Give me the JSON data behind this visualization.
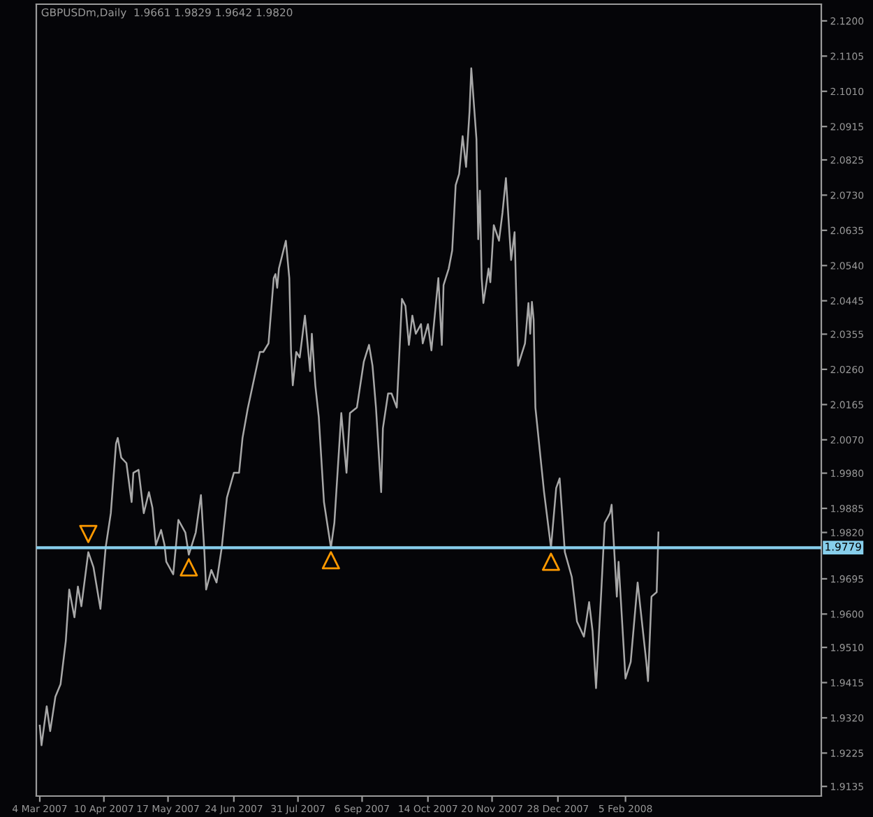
{
  "chart_data": {
    "type": "line",
    "title": "GBPUSDm,Daily  1.9661 1.9829 1.9642 1.9820",
    "xlim": [
      "2007-03-02",
      "2008-05-28"
    ],
    "xticks": [
      {
        "value": "2007-03-04",
        "label": "4 Mar 2007"
      },
      {
        "value": "2007-04-10",
        "label": "10 Apr 2007"
      },
      {
        "value": "2007-05-17",
        "label": "17 May 2007"
      },
      {
        "value": "2007-06-24",
        "label": "24 Jun 2007"
      },
      {
        "value": "2007-07-31",
        "label": "31 Jul 2007"
      },
      {
        "value": "2007-09-06",
        "label": "6 Sep 2007"
      },
      {
        "value": "2007-10-14",
        "label": "14 Oct 2007"
      },
      {
        "value": "2007-11-20",
        "label": "20 Nov 2007"
      },
      {
        "value": "2007-12-28",
        "label": "28 Dec 2007"
      },
      {
        "value": "2008-02-05",
        "label": "5 Feb 2008"
      }
    ],
    "ylim": [
      1.9109,
      2.1245
    ],
    "yticks": [
      {
        "value": 2.12,
        "label": "2.1200"
      },
      {
        "value": 2.1105,
        "label": "2.1105"
      },
      {
        "value": 2.101,
        "label": "2.1010"
      },
      {
        "value": 2.0915,
        "label": "2.0915"
      },
      {
        "value": 2.0825,
        "label": "2.0825"
      },
      {
        "value": 2.073,
        "label": "2.0730"
      },
      {
        "value": 2.0635,
        "label": "2.0635"
      },
      {
        "value": 2.054,
        "label": "2.0540"
      },
      {
        "value": 2.0445,
        "label": "2.0445"
      },
      {
        "value": 2.0355,
        "label": "2.0355"
      },
      {
        "value": 2.026,
        "label": "2.0260"
      },
      {
        "value": 2.0165,
        "label": "2.0165"
      },
      {
        "value": 2.007,
        "label": "2.0070"
      },
      {
        "value": 1.998,
        "label": "1.9980"
      },
      {
        "value": 1.9885,
        "label": "1.9885"
      },
      {
        "value": 1.982,
        "label": "1.9820"
      },
      {
        "value": 1.9695,
        "label": "1.9695"
      },
      {
        "value": 1.96,
        "label": "1.9600"
      },
      {
        "value": 1.951,
        "label": "1.9510"
      },
      {
        "value": 1.9415,
        "label": "1.9415"
      },
      {
        "value": 1.932,
        "label": "1.9320"
      },
      {
        "value": 1.9225,
        "label": "1.9225"
      },
      {
        "value": 1.9135,
        "label": "1.9135"
      }
    ],
    "grid": false,
    "ref_lines": [
      {
        "axis": "y",
        "value": 1.9779,
        "label": "1.9779",
        "color": "#87ceeb",
        "line_style": "solid"
      }
    ],
    "series": [
      {
        "type": "line",
        "color": "#a8a8a8",
        "line_style": "solid",
        "x": [
          "2007-03-04",
          "2007-03-05",
          "2007-03-08",
          "2007-03-10",
          "2007-03-13",
          "2007-03-16",
          "2007-03-19",
          "2007-03-21",
          "2007-03-24",
          "2007-03-26",
          "2007-03-28",
          "2007-04-01",
          "2007-04-04",
          "2007-04-08",
          "2007-04-11",
          "2007-04-14",
          "2007-04-17",
          "2007-04-18",
          "2007-04-20",
          "2007-04-23",
          "2007-04-26",
          "2007-04-27",
          "2007-04-30",
          "2007-05-03",
          "2007-05-06",
          "2007-05-08",
          "2007-05-10",
          "2007-05-13",
          "2007-05-15",
          "2007-05-16",
          "2007-05-20",
          "2007-05-23",
          "2007-05-27",
          "2007-05-29",
          "2007-06-02",
          "2007-06-05",
          "2007-06-07",
          "2007-06-08",
          "2007-06-11",
          "2007-06-14",
          "2007-06-17",
          "2007-06-20",
          "2007-06-24",
          "2007-06-27",
          "2007-06-29",
          "2007-07-02",
          "2007-07-09",
          "2007-07-11",
          "2007-07-14",
          "2007-07-17",
          "2007-07-18",
          "2007-07-19",
          "2007-07-20",
          "2007-07-24",
          "2007-07-26",
          "2007-07-27",
          "2007-07-28",
          "2007-07-30",
          "2007-08-01",
          "2007-08-04",
          "2007-08-07",
          "2007-08-08",
          "2007-08-10",
          "2007-08-12",
          "2007-08-15",
          "2007-08-19",
          "2007-08-21",
          "2007-08-25",
          "2007-08-28",
          "2007-08-30",
          "2007-09-03",
          "2007-09-07",
          "2007-09-10",
          "2007-09-12",
          "2007-09-14",
          "2007-09-17",
          "2007-09-18",
          "2007-09-21",
          "2007-09-23",
          "2007-09-26",
          "2007-09-29",
          "2007-10-01",
          "2007-10-03",
          "2007-10-05",
          "2007-10-07",
          "2007-10-10",
          "2007-10-11",
          "2007-10-14",
          "2007-10-16",
          "2007-10-20",
          "2007-10-22",
          "2007-10-23",
          "2007-10-26",
          "2007-10-28",
          "2007-10-30",
          "2007-11-01",
          "2007-11-03",
          "2007-11-05",
          "2007-11-07",
          "2007-11-08",
          "2007-11-11",
          "2007-11-12",
          "2007-11-13",
          "2007-11-14",
          "2007-11-15",
          "2007-11-18",
          "2007-11-19",
          "2007-11-21",
          "2007-11-24",
          "2007-11-26",
          "2007-11-28",
          "2007-12-01",
          "2007-12-03",
          "2007-12-05",
          "2007-12-09",
          "2007-12-11",
          "2007-12-12",
          "2007-12-13",
          "2007-12-14",
          "2007-12-15",
          "2007-12-20",
          "2007-12-24",
          "2007-12-27",
          "2007-12-29",
          "2008-01-01",
          "2008-01-05",
          "2008-01-08",
          "2008-01-12",
          "2008-01-15",
          "2008-01-17",
          "2008-01-19",
          "2008-01-22",
          "2008-01-24",
          "2008-01-27",
          "2008-01-28",
          "2008-01-31",
          "2008-02-01",
          "2008-02-05",
          "2008-02-08",
          "2008-02-12",
          "2008-02-17",
          "2008-02-18",
          "2008-02-20",
          "2008-02-23",
          "2008-02-24"
        ],
        "values": [
          1.9299,
          1.9246,
          1.9351,
          1.9284,
          1.9377,
          1.9411,
          1.9527,
          1.9666,
          1.9591,
          1.9674,
          1.9621,
          1.9767,
          1.9726,
          1.9614,
          1.9779,
          1.9872,
          2.006,
          2.0075,
          2.0022,
          2.0007,
          1.9902,
          1.9981,
          1.9989,
          1.9872,
          1.9929,
          1.9887,
          1.9786,
          1.9827,
          1.9786,
          1.9741,
          1.9707,
          1.9854,
          1.982,
          1.976,
          1.982,
          1.9921,
          1.9767,
          1.9666,
          1.9719,
          1.9685,
          1.9779,
          1.9914,
          1.9981,
          1.9981,
          2.0075,
          2.0154,
          2.0307,
          2.0307,
          2.033,
          2.0506,
          2.0517,
          2.048,
          2.0532,
          2.0607,
          2.0506,
          2.0307,
          2.0217,
          2.0307,
          2.0292,
          2.0405,
          2.0255,
          2.0356,
          2.0217,
          2.0131,
          1.9902,
          1.9779,
          1.9846,
          2.0142,
          1.9981,
          2.0142,
          2.0157,
          2.0281,
          2.0326,
          2.027,
          2.0157,
          1.9929,
          2.0101,
          2.0195,
          2.0195,
          2.0157,
          2.045,
          2.0431,
          2.0326,
          2.0405,
          2.0356,
          2.0382,
          2.033,
          2.0382,
          2.0311,
          2.0506,
          2.0326,
          2.0487,
          2.0532,
          2.0581,
          2.0757,
          2.0787,
          2.0889,
          2.0806,
          2.0956,
          2.1072,
          2.0881,
          2.0611,
          2.0742,
          2.0506,
          2.0439,
          2.0532,
          2.0495,
          2.0649,
          2.0607,
          2.0682,
          2.0776,
          2.0555,
          2.063,
          2.027,
          2.033,
          2.0439,
          2.0356,
          2.0442,
          2.0394,
          2.0157,
          1.9929,
          1.9779,
          1.994,
          1.9966,
          1.9767,
          1.97,
          1.958,
          1.9539,
          1.9632,
          1.9554,
          1.94,
          1.9659,
          1.9846,
          1.9872,
          1.9895,
          1.9647,
          1.9741,
          1.9426,
          1.9471,
          1.9685,
          1.9471,
          1.9419,
          1.9647,
          1.9659,
          1.982
        ]
      },
      {
        "type": "scatter",
        "color": "#ff9900",
        "marker": "triangle",
        "x": [
          "2007-04-01",
          "2007-05-29",
          "2007-08-19",
          "2007-12-24"
        ],
        "values": [
          1.9816,
          1.9726,
          1.9745,
          1.9741
        ]
      }
    ]
  }
}
